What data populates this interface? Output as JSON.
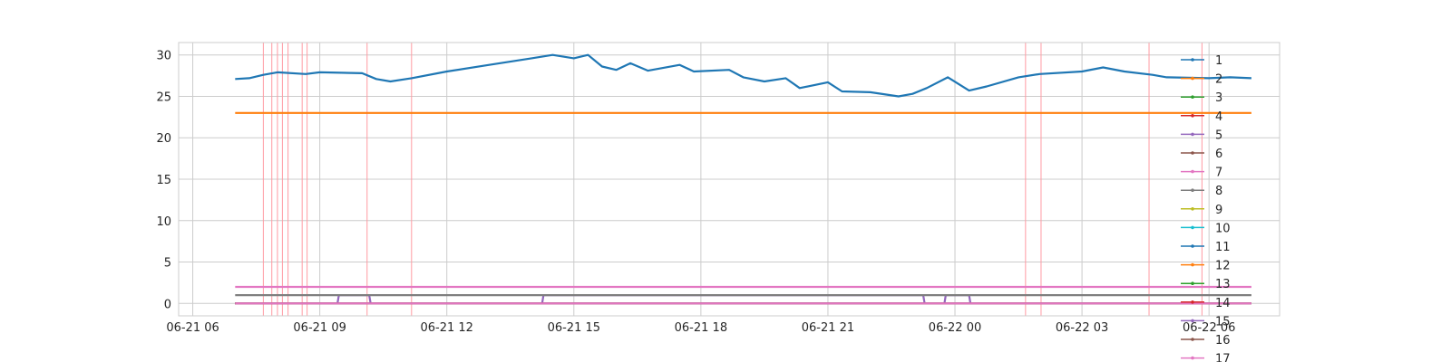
{
  "chart_data": {
    "type": "line",
    "title": "",
    "xlabel": "",
    "ylabel": "",
    "x_range": [
      "2021-06-21T05:40",
      "2021-06-22T07:40"
    ],
    "x_data_range": [
      "2021-06-21T07:00",
      "2021-06-22T07:00"
    ],
    "ylim": [
      -1.5,
      31.5
    ],
    "grid": true,
    "legend_placement": "right",
    "x_tick_labels": [
      "06-21 06",
      "06-21 09",
      "06-21 12",
      "06-21 15",
      "06-21 18",
      "06-21 21",
      "06-22 00",
      "06-22 03",
      "06-22 06"
    ],
    "x_ticks": [
      "2021-06-21T06:00",
      "2021-06-21T09:00",
      "2021-06-21T12:00",
      "2021-06-21T15:00",
      "2021-06-21T18:00",
      "2021-06-21T21:00",
      "2021-06-22T00:00",
      "2021-06-22T03:00",
      "2021-06-22T06:00"
    ],
    "y_ticks": [
      0,
      5,
      10,
      15,
      20,
      25,
      30
    ],
    "y_tick_labels": [
      "0",
      "5",
      "10",
      "15",
      "20",
      "25",
      "30"
    ],
    "series": [
      {
        "name": "1",
        "color": "#1f77b4",
        "points": [
          [
            "2021-06-21T07:00",
            27.1
          ],
          [
            "2021-06-21T07:20",
            27.2
          ],
          [
            "2021-06-21T07:40",
            27.6
          ],
          [
            "2021-06-21T08:00",
            27.9
          ],
          [
            "2021-06-21T08:40",
            27.7
          ],
          [
            "2021-06-21T09:00",
            27.9
          ],
          [
            "2021-06-21T10:00",
            27.8
          ],
          [
            "2021-06-21T10:20",
            27.1
          ],
          [
            "2021-06-21T10:40",
            26.8
          ],
          [
            "2021-06-21T11:10",
            27.2
          ],
          [
            "2021-06-21T12:00",
            28.0
          ],
          [
            "2021-06-21T13:00",
            28.8
          ],
          [
            "2021-06-21T14:00",
            29.6
          ],
          [
            "2021-06-21T14:30",
            30.0
          ],
          [
            "2021-06-21T15:00",
            29.6
          ],
          [
            "2021-06-21T15:20",
            30.0
          ],
          [
            "2021-06-21T15:40",
            28.6
          ],
          [
            "2021-06-21T16:00",
            28.2
          ],
          [
            "2021-06-21T16:20",
            29.0
          ],
          [
            "2021-06-21T16:45",
            28.1
          ],
          [
            "2021-06-21T17:30",
            28.8
          ],
          [
            "2021-06-21T17:50",
            28.0
          ],
          [
            "2021-06-21T18:40",
            28.2
          ],
          [
            "2021-06-21T19:00",
            27.3
          ],
          [
            "2021-06-21T19:30",
            26.8
          ],
          [
            "2021-06-21T20:00",
            27.2
          ],
          [
            "2021-06-21T20:20",
            26.0
          ],
          [
            "2021-06-21T21:00",
            26.7
          ],
          [
            "2021-06-21T21:20",
            25.6
          ],
          [
            "2021-06-21T22:00",
            25.5
          ],
          [
            "2021-06-21T22:40",
            25.0
          ],
          [
            "2021-06-21T23:00",
            25.3
          ],
          [
            "2021-06-21T23:20",
            26.0
          ],
          [
            "2021-06-21T23:50",
            27.3
          ],
          [
            "2021-06-22T00:20",
            25.7
          ],
          [
            "2021-06-22T00:45",
            26.2
          ],
          [
            "2021-06-22T01:30",
            27.3
          ],
          [
            "2021-06-22T02:00",
            27.7
          ],
          [
            "2021-06-22T03:00",
            28.0
          ],
          [
            "2021-06-22T03:30",
            28.5
          ],
          [
            "2021-06-22T04:00",
            28.0
          ],
          [
            "2021-06-22T04:40",
            27.6
          ],
          [
            "2021-06-22T05:00",
            27.3
          ],
          [
            "2021-06-22T06:00",
            27.2
          ],
          [
            "2021-06-22T06:30",
            27.3
          ],
          [
            "2021-06-22T07:00",
            27.2
          ]
        ]
      },
      {
        "name": "2",
        "color": "#ff7f0e",
        "points": [
          [
            "2021-06-21T07:00",
            23.0
          ],
          [
            "2021-06-22T07:00",
            23.0
          ]
        ]
      },
      {
        "name": "3",
        "color": "#2ca02c",
        "points": [
          [
            "2021-06-21T07:00",
            0
          ],
          [
            "2021-06-22T07:00",
            0
          ]
        ]
      },
      {
        "name": "4",
        "color": "#d62728",
        "points": [
          [
            "2021-06-21T07:00",
            0
          ],
          [
            "2021-06-22T07:00",
            0
          ]
        ]
      },
      {
        "name": "5",
        "color": "#9467bd",
        "points": [
          [
            "2021-06-21T07:00",
            0
          ],
          [
            "2021-06-21T09:25",
            0
          ],
          [
            "2021-06-21T09:27",
            1.0
          ],
          [
            "2021-06-21T10:10",
            1.0
          ],
          [
            "2021-06-21T10:12",
            0
          ],
          [
            "2021-06-21T14:15",
            0
          ],
          [
            "2021-06-21T14:17",
            1.0
          ],
          [
            "2021-06-21T23:15",
            1.0
          ],
          [
            "2021-06-21T23:17",
            0
          ],
          [
            "2021-06-21T23:45",
            0
          ],
          [
            "2021-06-21T23:47",
            1.0
          ],
          [
            "2021-06-22T00:20",
            1.0
          ],
          [
            "2021-06-22T00:22",
            0
          ],
          [
            "2021-06-22T07:00",
            0
          ]
        ]
      },
      {
        "name": "6",
        "color": "#8c564b",
        "points": [
          [
            "2021-06-21T07:00",
            0
          ],
          [
            "2021-06-22T07:00",
            0
          ]
        ]
      },
      {
        "name": "7",
        "color": "#e377c2",
        "points": [
          [
            "2021-06-21T07:00",
            2.0
          ],
          [
            "2021-06-22T07:00",
            2.0
          ]
        ]
      },
      {
        "name": "8",
        "color": "#7f7f7f",
        "points": [
          [
            "2021-06-21T07:00",
            1.0
          ],
          [
            "2021-06-22T07:00",
            1.0
          ]
        ]
      },
      {
        "name": "9",
        "color": "#bcbd22",
        "points": [
          [
            "2021-06-21T07:00",
            0
          ],
          [
            "2021-06-22T07:00",
            0
          ]
        ]
      },
      {
        "name": "10",
        "color": "#17becf",
        "points": [
          [
            "2021-06-21T07:00",
            0
          ],
          [
            "2021-06-22T07:00",
            0
          ]
        ]
      },
      {
        "name": "11",
        "color": "#1f77b4",
        "points": [
          [
            "2021-06-21T07:00",
            0
          ],
          [
            "2021-06-22T07:00",
            0
          ]
        ]
      },
      {
        "name": "12",
        "color": "#ff7f0e",
        "points": [
          [
            "2021-06-21T07:00",
            0
          ],
          [
            "2021-06-22T07:00",
            0
          ]
        ]
      },
      {
        "name": "13",
        "color": "#2ca02c",
        "points": [
          [
            "2021-06-21T07:00",
            0
          ],
          [
            "2021-06-22T07:00",
            0
          ]
        ]
      },
      {
        "name": "14",
        "color": "#d62728",
        "points": [
          [
            "2021-06-21T07:00",
            0
          ],
          [
            "2021-06-22T07:00",
            0
          ]
        ]
      },
      {
        "name": "15",
        "color": "#9467bd",
        "points": [
          [
            "2021-06-21T07:00",
            0
          ],
          [
            "2021-06-22T07:00",
            0
          ]
        ]
      },
      {
        "name": "16",
        "color": "#8c564b",
        "points": [
          [
            "2021-06-21T07:00",
            0
          ],
          [
            "2021-06-22T07:00",
            0
          ]
        ]
      },
      {
        "name": "17",
        "color": "#e377c2",
        "points": [
          [
            "2021-06-21T07:00",
            0
          ],
          [
            "2021-06-22T07:00",
            0
          ]
        ]
      }
    ],
    "event_lines": {
      "color": "#ff9aa2",
      "x": [
        "2021-06-21T07:40",
        "2021-06-21T07:52",
        "2021-06-21T08:00",
        "2021-06-21T08:07",
        "2021-06-21T08:15",
        "2021-06-21T08:35",
        "2021-06-21T08:42",
        "2021-06-21T10:07",
        "2021-06-21T11:10",
        "2021-06-22T01:40",
        "2021-06-22T02:02",
        "2021-06-22T04:35",
        "2021-06-22T05:50"
      ]
    }
  }
}
